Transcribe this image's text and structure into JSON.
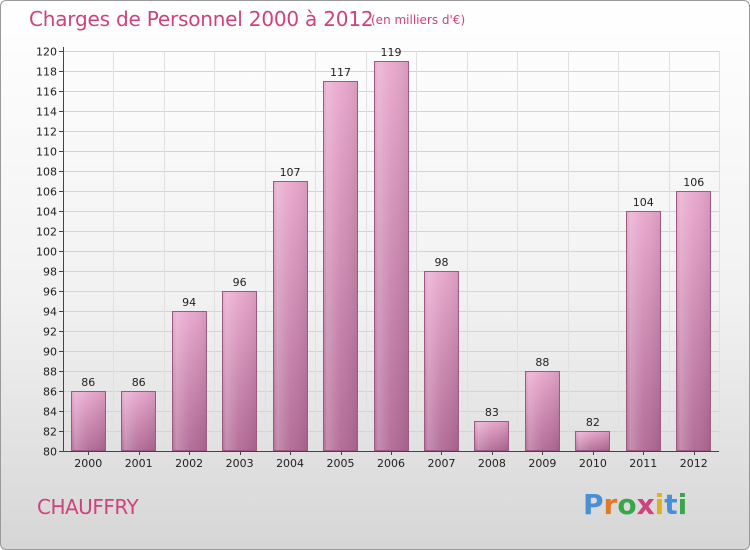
{
  "header": {
    "title": "Charges de Personnel 2000 à 2012",
    "subtitle": "(en milliers d'€)"
  },
  "footer": {
    "commune": "CHAUFFRY",
    "logo_text": "Proxiti"
  },
  "colors": {
    "title": "#d0427d",
    "bar_top": "#e8a6cc",
    "bar_bottom": "#b06894",
    "logo": [
      "#4a8fd6",
      "#e07a2a",
      "#3aa64a",
      "#d0427d",
      "#e0b020",
      "#4a8fd6",
      "#3aa64a"
    ]
  },
  "chart_data": {
    "type": "bar",
    "categories": [
      "2000",
      "2001",
      "2002",
      "2003",
      "2004",
      "2005",
      "2006",
      "2007",
      "2008",
      "2009",
      "2010",
      "2011",
      "2012"
    ],
    "values": [
      86,
      86,
      94,
      96,
      107,
      117,
      119,
      98,
      83,
      88,
      82,
      104,
      106
    ],
    "ylim": [
      80,
      120
    ],
    "yticks": [
      80,
      82,
      84,
      86,
      88,
      90,
      92,
      94,
      96,
      98,
      100,
      102,
      104,
      106,
      108,
      110,
      112,
      114,
      116,
      118,
      120
    ],
    "grid": true
  }
}
